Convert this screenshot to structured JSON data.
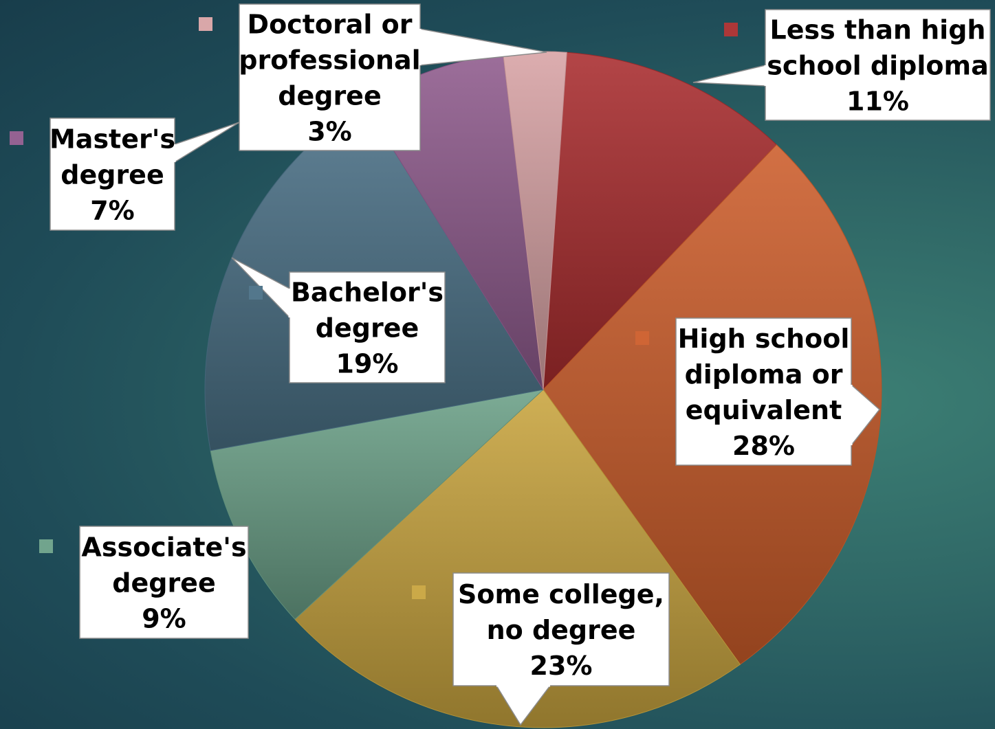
{
  "chart_data": {
    "type": "pie",
    "title": "",
    "slices": [
      {
        "label": "Less than high school diploma",
        "label_lines": [
          "Less than high",
          "school diploma"
        ],
        "value": 11,
        "value_label": "11%",
        "color": "#a92c2e"
      },
      {
        "label": "High school diploma or equivalent",
        "label_lines": [
          "High school",
          "diploma or",
          "equivalent"
        ],
        "value": 28,
        "value_label": "28%",
        "color": "#cc5d2a"
      },
      {
        "label": "Some college, no degree",
        "label_lines": [
          "Some college,",
          "no degree"
        ],
        "value": 23,
        "value_label": "23%",
        "color": "#c8a43e"
      },
      {
        "label": "Associate's degree",
        "label_lines": [
          "Associate's",
          "degree"
        ],
        "value": 9,
        "value_label": "9%",
        "color": "#6a9f87"
      },
      {
        "label": "Bachelor's degree",
        "label_lines": [
          "Bachelor's",
          "degree"
        ],
        "value": 19,
        "value_label": "19%",
        "color": "#4a7086"
      },
      {
        "label": "Master's degree",
        "label_lines": [
          "Master's",
          "degree"
        ],
        "value": 7,
        "value_label": "7%",
        "color": "#8e5a8c"
      },
      {
        "label": "Doctoral or professional degree",
        "label_lines": [
          "Doctoral or",
          "professional",
          "degree"
        ],
        "value": 3,
        "value_label": "3%",
        "color": "#d7a2a4"
      }
    ],
    "start_angle_deg": 4,
    "direction": "clockwise",
    "legend": "callout labels with color markers"
  }
}
